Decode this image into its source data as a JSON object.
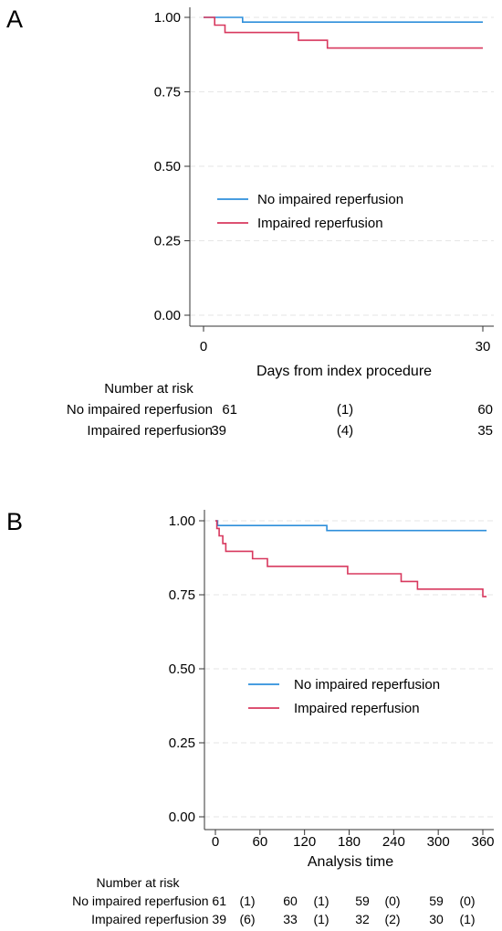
{
  "chart_data": [
    {
      "panel": "A",
      "type": "line",
      "xlabel": "Days from index procedure",
      "ylabel": "",
      "xlim": [
        0,
        30
      ],
      "ylim": [
        0,
        1
      ],
      "x_ticks": [
        "0",
        "30"
      ],
      "y_ticks": [
        "0.00",
        "0.25",
        "0.50",
        "0.75",
        "1.00"
      ],
      "grid": true,
      "legend_position": "center-right",
      "series": [
        {
          "name": "No impaired reperfusion",
          "color": "#2e8fdb",
          "points": [
            [
              0,
              1.0
            ],
            [
              4.2,
              1.0
            ],
            [
              4.2,
              0.984
            ],
            [
              30,
              0.984
            ]
          ]
        },
        {
          "name": "Impaired reperfusion",
          "color": "#d8385e",
          "points": [
            [
              0,
              1.0
            ],
            [
              1.2,
              1.0
            ],
            [
              1.2,
              0.974
            ],
            [
              2.3,
              0.974
            ],
            [
              2.3,
              0.949
            ],
            [
              10.2,
              0.949
            ],
            [
              10.2,
              0.923
            ],
            [
              13.3,
              0.923
            ],
            [
              13.3,
              0.897
            ],
            [
              30,
              0.897
            ]
          ]
        }
      ],
      "risk_table": {
        "title": "Number at risk",
        "rows": [
          {
            "label": "No impaired reperfusion",
            "values": [
              "61",
              "(1)",
              "60"
            ]
          },
          {
            "label": "Impaired reperfusion",
            "values": [
              "39",
              "(4)",
              "35"
            ]
          }
        ]
      }
    },
    {
      "panel": "B",
      "type": "line",
      "xlabel": "Analysis time",
      "ylabel": "",
      "xlim": [
        0,
        360
      ],
      "ylim": [
        0,
        1
      ],
      "x_ticks": [
        "0",
        "60",
        "120",
        "180",
        "240",
        "300",
        "360"
      ],
      "y_ticks": [
        "0.00",
        "0.25",
        "0.50",
        "0.75",
        "1.00"
      ],
      "grid": true,
      "legend_position": "center-right",
      "series": [
        {
          "name": "No impaired reperfusion",
          "color": "#2e8fdb",
          "points": [
            [
              0,
              1.0
            ],
            [
              3,
              1.0
            ],
            [
              3,
              0.984
            ],
            [
              150,
              0.984
            ],
            [
              150,
              0.967
            ],
            [
              365,
              0.967
            ]
          ]
        },
        {
          "name": "Impaired reperfusion",
          "color": "#d8385e",
          "points": [
            [
              0,
              1.0
            ],
            [
              2,
              1.0
            ],
            [
              2,
              0.974
            ],
            [
              5,
              0.974
            ],
            [
              5,
              0.949
            ],
            [
              10,
              0.949
            ],
            [
              10,
              0.923
            ],
            [
              14,
              0.923
            ],
            [
              14,
              0.897
            ],
            [
              50,
              0.897
            ],
            [
              50,
              0.872
            ],
            [
              70,
              0.872
            ],
            [
              70,
              0.846
            ],
            [
              178,
              0.846
            ],
            [
              178,
              0.821
            ],
            [
              250,
              0.821
            ],
            [
              250,
              0.795
            ],
            [
              272,
              0.795
            ],
            [
              272,
              0.769
            ],
            [
              360,
              0.769
            ],
            [
              360,
              0.744
            ],
            [
              365,
              0.744
            ]
          ]
        }
      ],
      "risk_table": {
        "title": "Number at risk",
        "rows": [
          {
            "label": "No impaired reperfusion",
            "values": [
              "61",
              "(1)",
              "60",
              "(1)",
              "59",
              "(0)",
              "59",
              "(0)"
            ]
          },
          {
            "label": "Impaired reperfusion",
            "values": [
              "39",
              "(6)",
              "33",
              "(1)",
              "32",
              "(2)",
              "30",
              "(1)"
            ]
          }
        ]
      }
    }
  ]
}
